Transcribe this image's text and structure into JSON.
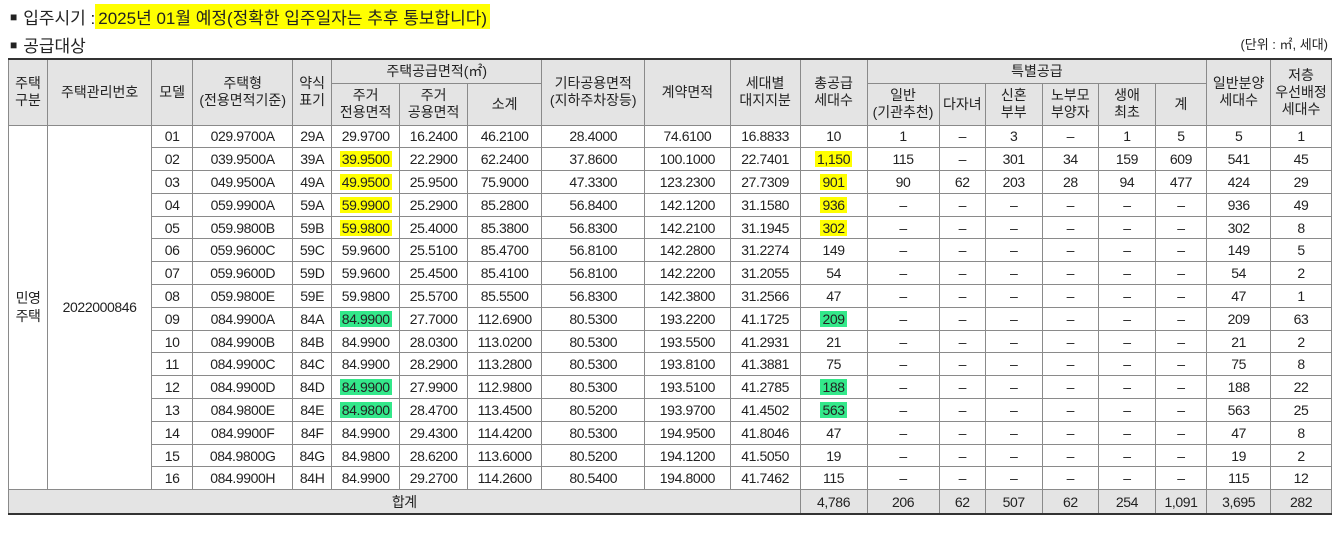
{
  "move_in": {
    "label": "입주시기 : ",
    "value": "2025년 01월 예정(정확한 입주일자는 추후 통보합니다)"
  },
  "supply": {
    "label": "공급대상",
    "unit": "(단위 : ㎡, 세대)"
  },
  "bullet": "■",
  "headers": {
    "housing_type": "주택\n구분",
    "mgmt_no": "주택관리번호",
    "model": "모델",
    "house_type": "주택형\n(전용면적기준)",
    "abbr": "약식\n표기",
    "supply_area": "주택공급면적(㎡)",
    "exclusive": "주거\n전용면적",
    "common": "주거\n공용면적",
    "subtotal": "소계",
    "other_common": "기타공용면적\n(지하주차장등)",
    "contract_area": "계약면적",
    "land_share": "세대별\n대지지분",
    "total_units": "총공급\n세대수",
    "special": "특별공급",
    "general_rec": "일반\n(기관추천)",
    "multi_child": "다자녀",
    "newlywed": "신혼\n부부",
    "elderly": "노부모\n부양자",
    "first_time": "생애\n최초",
    "sum": "계",
    "general_sale": "일반분양\n세대수",
    "low_priority": "저층\n우선배정\n세대수"
  },
  "group": {
    "housing_type": "민영\n주택",
    "mgmt_no": "2022000846"
  },
  "rows": [
    [
      "01",
      "029.9700A",
      "29A",
      "29.9700",
      "16.2400",
      "46.2100",
      "28.4000",
      "74.6100",
      "16.8833",
      "10",
      "1",
      "–",
      "3",
      "–",
      "1",
      "5",
      "5",
      "1"
    ],
    [
      "02",
      "039.9500A",
      "39A",
      "39.9500",
      "22.2900",
      "62.2400",
      "37.8600",
      "100.1000",
      "22.7401",
      "1,150",
      "115",
      "–",
      "301",
      "34",
      "159",
      "609",
      "541",
      "45"
    ],
    [
      "03",
      "049.9500A",
      "49A",
      "49.9500",
      "25.9500",
      "75.9000",
      "47.3300",
      "123.2300",
      "27.7309",
      "901",
      "90",
      "62",
      "203",
      "28",
      "94",
      "477",
      "424",
      "29"
    ],
    [
      "04",
      "059.9900A",
      "59A",
      "59.9900",
      "25.2900",
      "85.2800",
      "56.8400",
      "142.1200",
      "31.1580",
      "936",
      "–",
      "–",
      "–",
      "–",
      "–",
      "–",
      "936",
      "49"
    ],
    [
      "05",
      "059.9800B",
      "59B",
      "59.9800",
      "25.4000",
      "85.3800",
      "56.8300",
      "142.2100",
      "31.1945",
      "302",
      "–",
      "–",
      "–",
      "–",
      "–",
      "–",
      "302",
      "8"
    ],
    [
      "06",
      "059.9600C",
      "59C",
      "59.9600",
      "25.5100",
      "85.4700",
      "56.8100",
      "142.2800",
      "31.2274",
      "149",
      "–",
      "–",
      "–",
      "–",
      "–",
      "–",
      "149",
      "5"
    ],
    [
      "07",
      "059.9600D",
      "59D",
      "59.9600",
      "25.4500",
      "85.4100",
      "56.8100",
      "142.2200",
      "31.2055",
      "54",
      "–",
      "–",
      "–",
      "–",
      "–",
      "–",
      "54",
      "2"
    ],
    [
      "08",
      "059.9800E",
      "59E",
      "59.9800",
      "25.5700",
      "85.5500",
      "56.8300",
      "142.3800",
      "31.2566",
      "47",
      "–",
      "–",
      "–",
      "–",
      "–",
      "–",
      "47",
      "1"
    ],
    [
      "09",
      "084.9900A",
      "84A",
      "84.9900",
      "27.7000",
      "112.6900",
      "80.5300",
      "193.2200",
      "41.1725",
      "209",
      "–",
      "–",
      "–",
      "–",
      "–",
      "–",
      "209",
      "63"
    ],
    [
      "10",
      "084.9900B",
      "84B",
      "84.9900",
      "28.0300",
      "113.0200",
      "80.5300",
      "193.5500",
      "41.2931",
      "21",
      "–",
      "–",
      "–",
      "–",
      "–",
      "–",
      "21",
      "2"
    ],
    [
      "11",
      "084.9900C",
      "84C",
      "84.9900",
      "28.2900",
      "113.2800",
      "80.5300",
      "193.8100",
      "41.3881",
      "75",
      "–",
      "–",
      "–",
      "–",
      "–",
      "–",
      "75",
      "8"
    ],
    [
      "12",
      "084.9900D",
      "84D",
      "84.9900",
      "27.9900",
      "112.9800",
      "80.5300",
      "193.5100",
      "41.2785",
      "188",
      "–",
      "–",
      "–",
      "–",
      "–",
      "–",
      "188",
      "22"
    ],
    [
      "13",
      "084.9800E",
      "84E",
      "84.9800",
      "28.4700",
      "113.4500",
      "80.5200",
      "193.9700",
      "41.4502",
      "563",
      "–",
      "–",
      "–",
      "–",
      "–",
      "–",
      "563",
      "25"
    ],
    [
      "14",
      "084.9900F",
      "84F",
      "84.9900",
      "29.4300",
      "114.4200",
      "80.5300",
      "194.9500",
      "41.8046",
      "47",
      "–",
      "–",
      "–",
      "–",
      "–",
      "–",
      "47",
      "8"
    ],
    [
      "15",
      "084.9800G",
      "84G",
      "84.9800",
      "28.6200",
      "113.6000",
      "80.5200",
      "194.1200",
      "41.5050",
      "19",
      "–",
      "–",
      "–",
      "–",
      "–",
      "–",
      "19",
      "2"
    ],
    [
      "16",
      "084.9900H",
      "84H",
      "84.9900",
      "29.2700",
      "114.2600",
      "80.5400",
      "194.8000",
      "41.7462",
      "115",
      "–",
      "–",
      "–",
      "–",
      "–",
      "–",
      "115",
      "12"
    ]
  ],
  "highlights": {
    "yellow": {
      "1": [
        3,
        9
      ],
      "2": [
        3,
        9
      ],
      "3": [
        3,
        9
      ],
      "4": [
        3,
        9
      ]
    },
    "green": {
      "8": [
        3,
        9
      ],
      "11": [
        3,
        9
      ],
      "12": [
        3,
        9
      ]
    }
  },
  "total": {
    "label": "합계",
    "values": [
      "4,786",
      "206",
      "62",
      "507",
      "62",
      "254",
      "1,091",
      "3,695",
      "282"
    ]
  }
}
